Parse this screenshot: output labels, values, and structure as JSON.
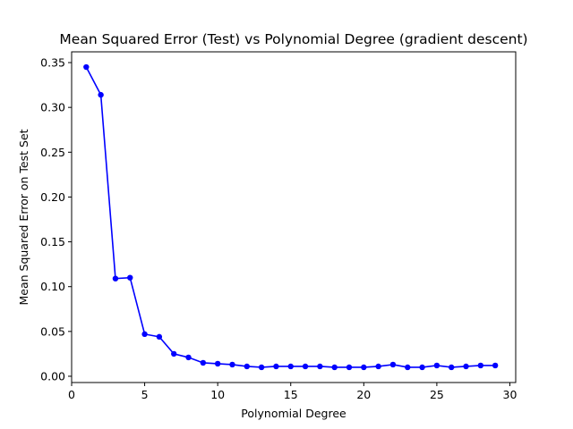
{
  "chart_data": {
    "type": "line",
    "title": "Mean Squared Error (Test) vs Polynomial Degree (gradient descent)",
    "xlabel": "Polynomial Degree",
    "ylabel": "Mean Squared Error on Test Set",
    "xlim": [
      0,
      30.4
    ],
    "ylim": [
      -0.007,
      0.362
    ],
    "xticks": [
      0,
      5,
      10,
      15,
      20,
      25,
      30
    ],
    "yticks": [
      0.0,
      0.05,
      0.1,
      0.15,
      0.2,
      0.25,
      0.3,
      0.35
    ],
    "ytick_labels": [
      "0.00",
      "0.05",
      "0.10",
      "0.15",
      "0.20",
      "0.25",
      "0.30",
      "0.35"
    ],
    "grid": false,
    "series_color": "#0000ff",
    "series": [
      {
        "marker": "circle",
        "x": [
          1,
          2,
          3,
          4,
          5,
          6,
          7,
          8,
          9,
          10,
          11,
          12,
          13,
          14,
          15,
          16,
          17,
          18,
          19,
          20,
          21,
          22,
          23,
          24,
          25,
          26,
          27,
          28,
          29
        ],
        "values": [
          0.345,
          0.314,
          0.109,
          0.11,
          0.047,
          0.044,
          0.025,
          0.021,
          0.015,
          0.014,
          0.013,
          0.011,
          0.01,
          0.011,
          0.011,
          0.011,
          0.011,
          0.01,
          0.01,
          0.01,
          0.011,
          0.013,
          0.01,
          0.01,
          0.012,
          0.01,
          0.011,
          0.012,
          0.012
        ]
      }
    ]
  }
}
